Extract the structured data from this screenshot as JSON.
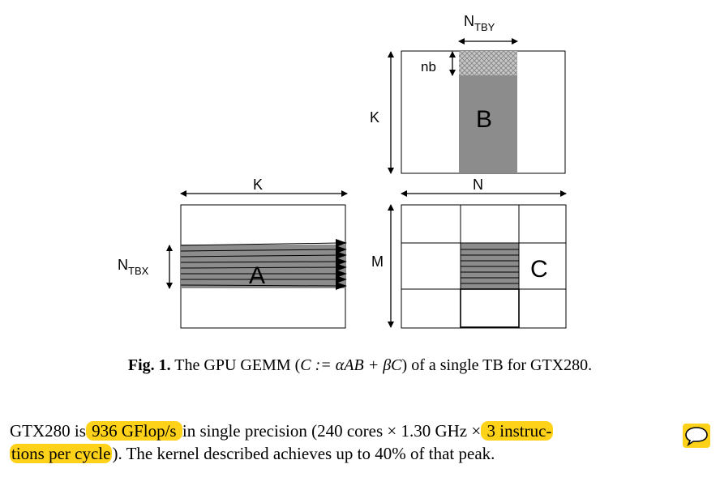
{
  "figure": {
    "labels": {
      "ntby": "N",
      "ntby_sub": "TBY",
      "nb": "nb",
      "k_b": "K",
      "b": "B",
      "k_a": "K",
      "n": "N",
      "ntbx": "N",
      "ntbx_sub": "TBX",
      "a": "A",
      "m": "M",
      "c": "C"
    }
  },
  "caption": {
    "fig_label": "Fig. 1.",
    "text_before": " The GPU GEMM (",
    "math": "C := αAB + βC",
    "text_after": ") of a single TB for GTX280."
  },
  "paragraph": {
    "part1": "GTX280 is",
    "hl1": " 936 GFlop/s ",
    "part2": "in single precision (240 cores × 1.30 GHz ×",
    "hl2": " 3 instruc-",
    "hl3": "tions per cycle",
    "part3": "). The kernel described achieves up to 40% of that peak."
  },
  "comment": {
    "icon": "speech-bubble-icon"
  },
  "colors": {
    "highlight": "#ffd21a",
    "fill_gray": "#8c8c8c"
  }
}
